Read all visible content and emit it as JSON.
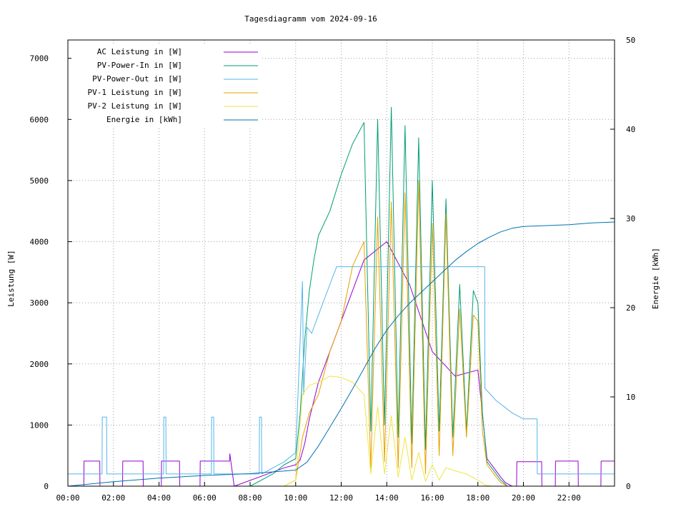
{
  "chart_data": {
    "type": "line",
    "title": "Tagesdiagramm vom 2024-09-16",
    "xlabel": "",
    "ylabel": "Leistung [W]",
    "y2label": "Energie [kWh]",
    "xlim": [
      0,
      24
    ],
    "ylim": [
      0,
      7300
    ],
    "y2lim": [
      0,
      50
    ],
    "x_ticks": [
      "00:00",
      "02:00",
      "04:00",
      "06:00",
      "08:00",
      "10:00",
      "12:00",
      "14:00",
      "16:00",
      "18:00",
      "20:00",
      "22:00"
    ],
    "y_ticks": [
      "0",
      "1000",
      "2000",
      "3000",
      "4000",
      "5000",
      "6000",
      "7000"
    ],
    "y2_ticks": [
      "0",
      "10",
      "20",
      "30",
      "40",
      "50"
    ],
    "grid": true,
    "legend_position": "top-left",
    "series": [
      {
        "name": "AC Leistung in [W]",
        "color": "#9400d3",
        "axis": "left",
        "x": [
          0,
          0.7,
          0.71,
          1.4,
          1.41,
          2.4,
          2.41,
          3.3,
          3.31,
          4.1,
          4.11,
          4.9,
          4.91,
          5.8,
          5.81,
          7.1,
          7.11,
          7.3,
          7.31,
          9.5,
          10.0,
          10.2,
          10.4,
          10.6,
          11.0,
          12.0,
          13.0,
          14.0,
          15.0,
          16.0,
          17.0,
          18.0,
          18.4,
          18.7,
          19.0,
          19.2,
          19.5,
          19.7,
          19.71,
          20.8,
          20.81,
          21.4,
          21.41,
          22.4,
          22.41,
          23.4,
          23.41,
          24.0
        ],
        "y": [
          0,
          0,
          410,
          410,
          0,
          0,
          410,
          410,
          0,
          0,
          410,
          410,
          0,
          0,
          410,
          410,
          530,
          0,
          0,
          300,
          350,
          430,
          700,
          1100,
          1700,
          2700,
          3700,
          4000,
          3300,
          2200,
          1800,
          1900,
          450,
          300,
          150,
          60,
          0,
          0,
          400,
          400,
          0,
          0,
          410,
          410,
          0,
          0,
          410,
          410
        ]
      },
      {
        "name": "PV-Power-In in [W]",
        "color": "#009e73",
        "axis": "left",
        "x": [
          0,
          7.0,
          8.0,
          9.0,
          9.5,
          10.0,
          10.2,
          10.4,
          10.6,
          10.8,
          11.0,
          11.5,
          12.0,
          12.5,
          13.0,
          13.3,
          13.6,
          13.9,
          14.2,
          14.5,
          14.8,
          15.1,
          15.4,
          15.7,
          16.0,
          16.3,
          16.6,
          16.9,
          17.2,
          17.5,
          17.8,
          18.0,
          18.2,
          18.4,
          18.7,
          19.0,
          19.3,
          19.6,
          24.0
        ],
        "y": [
          0,
          0,
          0,
          200,
          350,
          450,
          1200,
          2400,
          3200,
          3700,
          4100,
          4500,
          5100,
          5600,
          5950,
          900,
          6000,
          1000,
          6200,
          800,
          5900,
          700,
          5700,
          600,
          5000,
          900,
          4700,
          800,
          3300,
          900,
          3200,
          3000,
          1200,
          400,
          250,
          100,
          0,
          0,
          0
        ]
      },
      {
        "name": "PV-Power-Out in [W]",
        "color": "#56b4e9",
        "axis": "left",
        "x": [
          0,
          1.5,
          1.51,
          1.7,
          1.71,
          4.2,
          4.21,
          4.3,
          4.31,
          6.3,
          6.31,
          6.4,
          6.41,
          8.4,
          8.41,
          8.5,
          8.51,
          9.0,
          9.5,
          10.0,
          10.3,
          10.35,
          10.5,
          10.7,
          11.0,
          11.5,
          11.8,
          12.0,
          13.0,
          14.0,
          15.0,
          15.5,
          16.0,
          16.5,
          17.0,
          17.5,
          18.0,
          18.3,
          18.31,
          18.8,
          19.5,
          20.0,
          20.5,
          20.6,
          20.61,
          21.0,
          22.0,
          22.1,
          22.11,
          22.5,
          24.0
        ],
        "y": [
          200,
          200,
          1130,
          1130,
          200,
          200,
          1130,
          1130,
          200,
          200,
          1130,
          1130,
          200,
          200,
          1130,
          1130,
          200,
          300,
          400,
          550,
          3350,
          1500,
          2600,
          2500,
          2800,
          3300,
          3590,
          3590,
          3590,
          3590,
          3590,
          3590,
          3590,
          3590,
          3590,
          3590,
          3590,
          3590,
          1600,
          1400,
          1200,
          1100,
          1100,
          1100,
          200,
          200,
          200,
          200,
          200,
          200,
          200
        ]
      },
      {
        "name": "PV-1 Leistung in [W]",
        "color": "#e69f00",
        "axis": "left",
        "x": [
          0,
          9.5,
          10.0,
          10.3,
          10.6,
          11.0,
          11.5,
          12.0,
          12.5,
          13.0,
          13.3,
          13.6,
          13.9,
          14.2,
          14.5,
          14.8,
          15.1,
          15.4,
          15.7,
          16.0,
          16.3,
          16.6,
          16.9,
          17.2,
          17.5,
          17.8,
          18.0,
          18.2,
          18.4,
          18.7,
          19.0,
          19.3,
          24.0
        ],
        "y": [
          0,
          0,
          100,
          800,
          1200,
          1500,
          2200,
          2700,
          3600,
          4000,
          300,
          4400,
          400,
          4650,
          300,
          4800,
          300,
          5000,
          200,
          4300,
          500,
          4450,
          500,
          2900,
          800,
          2800,
          2700,
          900,
          350,
          200,
          60,
          0,
          0
        ]
      },
      {
        "name": "PV-2 Leistung in [W]",
        "color": "#f0e442",
        "axis": "left",
        "x": [
          0,
          9.5,
          10.0,
          10.3,
          10.6,
          11.0,
          11.5,
          12.0,
          12.5,
          13.0,
          13.3,
          13.6,
          13.9,
          14.2,
          14.5,
          14.8,
          15.1,
          15.4,
          15.7,
          16.0,
          16.3,
          16.6,
          17.0,
          17.5,
          18.0,
          18.3,
          18.6,
          24.0
        ],
        "y": [
          0,
          0,
          100,
          1500,
          1650,
          1700,
          1800,
          1780,
          1700,
          1500,
          200,
          1300,
          200,
          1150,
          150,
          800,
          100,
          550,
          80,
          350,
          100,
          300,
          250,
          200,
          100,
          20,
          0,
          0
        ]
      },
      {
        "name": "Energie in [kWh]",
        "color": "#0072b2",
        "axis": "right",
        "x": [
          0,
          2,
          4,
          6,
          8,
          9,
          10,
          10.5,
          11,
          11.5,
          12,
          12.5,
          13,
          13.5,
          14,
          14.5,
          15,
          15.5,
          16,
          16.5,
          17,
          17.5,
          18,
          18.5,
          19,
          19.5,
          20,
          21,
          22,
          23,
          24
        ],
        "y": [
          0,
          0.5,
          0.9,
          1.2,
          1.4,
          1.6,
          1.8,
          2.7,
          4.5,
          6.6,
          8.7,
          10.9,
          13.2,
          15.5,
          17.5,
          19.1,
          20.5,
          21.7,
          22.9,
          24.1,
          25.3,
          26.3,
          27.2,
          27.9,
          28.5,
          28.9,
          29.1,
          29.2,
          29.3,
          29.5,
          29.6
        ]
      }
    ]
  }
}
